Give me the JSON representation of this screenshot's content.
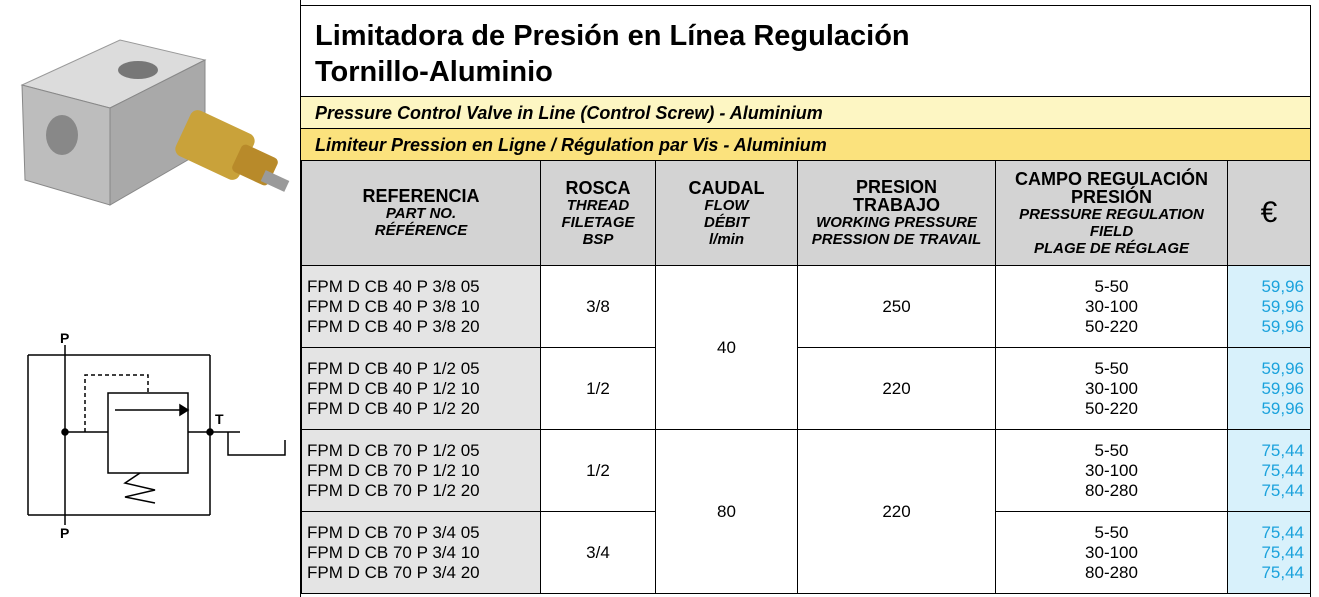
{
  "header": {
    "title_lines": [
      "Limitadora de Presión en Línea Regulación",
      "Tornillo-Aluminio"
    ],
    "subtitle_en": "Pressure Control Valve in Line (Control Screw) - Aluminium",
    "subtitle_fr": "Limiteur Pression en Ligne / Régulation par Vis - Aluminium"
  },
  "schematic": {
    "labels": [
      "P",
      "T",
      "P"
    ]
  },
  "table": {
    "columns": [
      {
        "main": [
          "REFERENCIA"
        ],
        "sub": [
          "PART NO.",
          "RÉFÉRENCE"
        ]
      },
      {
        "main": [
          "ROSCA"
        ],
        "sub": [
          "THREAD",
          "FILETAGE",
          "BSP"
        ]
      },
      {
        "main": [
          "CAUDAL"
        ],
        "sub": [
          "FLOW",
          "DÉBIT",
          "l/min"
        ]
      },
      {
        "main": [
          "PRESION",
          "TRABAJO"
        ],
        "sub": [
          "WORKING PRESSURE",
          "PRESSION DE TRAVAIL"
        ]
      },
      {
        "main": [
          "CAMPO REGULACIÓN",
          "PRESIÓN"
        ],
        "sub": [
          "PRESSURE REGULATION",
          "FIELD",
          "PLAGE DE RÉGLAGE"
        ]
      },
      {
        "main": [
          "€"
        ],
        "sub": []
      }
    ],
    "sections": [
      {
        "flow": "40",
        "pressures": [
          {
            "pressure": "250",
            "groups": [
              {
                "thread": "3/8",
                "items": [
                  {
                    "ref": "FPM D CB 40 P 3/8 05",
                    "range": "5-50",
                    "price": "59,96"
                  },
                  {
                    "ref": "FPM D CB 40 P 3/8 10",
                    "range": "30-100",
                    "price": "59,96"
                  },
                  {
                    "ref": "FPM D CB 40 P 3/8 20",
                    "range": "50-220",
                    "price": "59,96"
                  }
                ]
              }
            ]
          },
          {
            "pressure": "220",
            "groups": [
              {
                "thread": "1/2",
                "items": [
                  {
                    "ref": "FPM D CB 40 P 1/2 05",
                    "range": "5-50",
                    "price": "59,96"
                  },
                  {
                    "ref": "FPM D CB 40 P 1/2 10",
                    "range": "30-100",
                    "price": "59,96"
                  },
                  {
                    "ref": "FPM D CB 40 P 1/2 20",
                    "range": "50-220",
                    "price": "59,96"
                  }
                ]
              }
            ]
          }
        ]
      },
      {
        "flow": "80",
        "pressures": [
          {
            "pressure": "220",
            "groups": [
              {
                "thread": "1/2",
                "items": [
                  {
                    "ref": "FPM D CB 70 P 1/2 05",
                    "range": "5-50",
                    "price": "75,44"
                  },
                  {
                    "ref": "FPM D CB 70 P 1/2 10",
                    "range": "30-100",
                    "price": "75,44"
                  },
                  {
                    "ref": "FPM D CB 70 P 1/2 20",
                    "range": "80-280",
                    "price": "75,44"
                  }
                ]
              },
              {
                "thread": "3/4",
                "items": [
                  {
                    "ref": "FPM D CB 70 P 3/4 05",
                    "range": "5-50",
                    "price": "75,44"
                  },
                  {
                    "ref": "FPM D CB 70 P 3/4 10",
                    "range": "30-100",
                    "price": "75,44"
                  },
                  {
                    "ref": "FPM D CB 70 P 3/4 20",
                    "range": "80-280",
                    "price": "75,44"
                  }
                ]
              }
            ]
          }
        ]
      }
    ]
  }
}
